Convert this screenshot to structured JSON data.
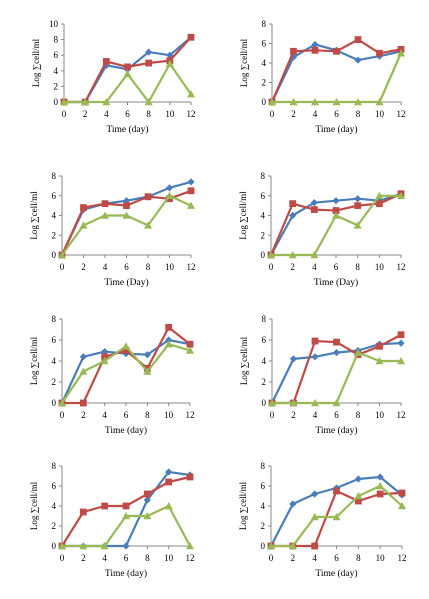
{
  "colors": {
    "series_a": "#4a7ebb",
    "series_b": "#be4b48",
    "series_c": "#98b954",
    "axis": "#888888"
  },
  "chart_data": [
    {
      "type": "line",
      "xlabel": "Time (day)",
      "ylabel": "Log ∑cell/ml",
      "x": [
        0,
        2,
        4,
        6,
        8,
        10,
        12
      ],
      "ylim": [
        0,
        10
      ],
      "yticks": [
        0,
        2,
        4,
        6,
        8,
        10
      ],
      "grid": false,
      "series": [
        {
          "marker": "diamond",
          "values": [
            0,
            0,
            4.7,
            4.2,
            6.4,
            6,
            8.3
          ]
        },
        {
          "marker": "square",
          "values": [
            0,
            0,
            5.2,
            4.5,
            5,
            5.3,
            8.3
          ]
        },
        {
          "marker": "triangle",
          "values": [
            0,
            0,
            0,
            3.6,
            0,
            4.9,
            1
          ]
        }
      ]
    },
    {
      "type": "line",
      "xlabel": "Time (day)",
      "ylabel": "Log ∑cell/ml",
      "x": [
        0,
        2,
        4,
        6,
        8,
        10,
        12
      ],
      "ylim": [
        0,
        8
      ],
      "yticks": [
        0,
        2,
        4,
        6,
        8
      ],
      "grid": false,
      "series": [
        {
          "marker": "diamond",
          "values": [
            0,
            4.6,
            5.9,
            5.3,
            4.3,
            4.7,
            5.2
          ]
        },
        {
          "marker": "square",
          "values": [
            0,
            5.2,
            5.3,
            5.2,
            6.4,
            5,
            5.4
          ]
        },
        {
          "marker": "triangle",
          "values": [
            0,
            0,
            0,
            0,
            0,
            0,
            5
          ]
        }
      ]
    },
    {
      "type": "line",
      "xlabel": "Time (Day)",
      "ylabel": "Log ∑cell/ml",
      "x": [
        0,
        2,
        4,
        6,
        8,
        10,
        12
      ],
      "ylim": [
        0,
        8
      ],
      "yticks": [
        0,
        2,
        4,
        6,
        8
      ],
      "grid": false,
      "series": [
        {
          "marker": "diamond",
          "values": [
            0,
            4.6,
            5.2,
            5.5,
            5.9,
            6.8,
            7.4
          ]
        },
        {
          "marker": "square",
          "values": [
            0,
            4.8,
            5.2,
            5,
            5.9,
            5.7,
            6.5
          ]
        },
        {
          "marker": "triangle",
          "values": [
            0,
            3,
            4,
            4,
            3,
            6,
            5
          ]
        }
      ]
    },
    {
      "type": "line",
      "xlabel": "Time (Day)",
      "ylabel": "Log ∑cell/ml",
      "x": [
        0,
        2,
        4,
        6,
        8,
        10,
        12
      ],
      "ylim": [
        0,
        8
      ],
      "yticks": [
        0,
        2,
        4,
        6,
        8
      ],
      "grid": false,
      "series": [
        {
          "marker": "diamond",
          "values": [
            0,
            4,
            5.3,
            5.5,
            5.7,
            5.5,
            6.2
          ]
        },
        {
          "marker": "square",
          "values": [
            0,
            5.2,
            4.6,
            4.5,
            5,
            5.2,
            6.2
          ]
        },
        {
          "marker": "triangle",
          "values": [
            0,
            0,
            0,
            4,
            3,
            6,
            6
          ]
        }
      ]
    },
    {
      "type": "line",
      "xlabel": "Time (day)",
      "ylabel": "Log ∑cell/ml",
      "x": [
        0,
        2,
        4,
        6,
        8,
        10,
        12
      ],
      "ylim": [
        0,
        8
      ],
      "yticks": [
        0,
        2,
        4,
        6,
        8
      ],
      "grid": false,
      "series": [
        {
          "marker": "diamond",
          "values": [
            0,
            4.4,
            4.9,
            4.7,
            4.6,
            6,
            5.6
          ]
        },
        {
          "marker": "square",
          "values": [
            0,
            0,
            4.4,
            5,
            3.3,
            7.2,
            5.6
          ]
        },
        {
          "marker": "triangle",
          "values": [
            0,
            3,
            4,
            5.4,
            3,
            5.6,
            5
          ]
        }
      ]
    },
    {
      "type": "line",
      "xlabel": "Time (day)",
      "ylabel": "Log ∑cell/ml",
      "x": [
        0,
        2,
        4,
        6,
        8,
        10,
        12
      ],
      "ylim": [
        0,
        8
      ],
      "yticks": [
        0,
        2,
        4,
        6,
        8
      ],
      "grid": false,
      "series": [
        {
          "marker": "diamond",
          "values": [
            0,
            4.2,
            4.4,
            4.8,
            5,
            5.6,
            5.7
          ]
        },
        {
          "marker": "square",
          "values": [
            0,
            0,
            5.9,
            5.8,
            4.6,
            5.4,
            6.5
          ]
        },
        {
          "marker": "triangle",
          "values": [
            0,
            0,
            0,
            0,
            4.8,
            4,
            4
          ]
        }
      ]
    },
    {
      "type": "line",
      "xlabel": "Time (day)",
      "ylabel": "Log ∑cell/ml",
      "x": [
        0,
        2,
        4,
        6,
        8,
        10,
        12
      ],
      "ylim": [
        0,
        8
      ],
      "yticks": [
        0,
        2,
        4,
        6,
        8
      ],
      "grid": false,
      "series": [
        {
          "marker": "diamond",
          "values": [
            0,
            0,
            0,
            0,
            4.6,
            7.4,
            7.1
          ]
        },
        {
          "marker": "square",
          "values": [
            0,
            3.4,
            4,
            4,
            5.2,
            6.4,
            6.9
          ]
        },
        {
          "marker": "triangle",
          "values": [
            0,
            0,
            0,
            3,
            3,
            4,
            0
          ]
        }
      ]
    },
    {
      "type": "line",
      "xlabel": "Time (day)",
      "ylabel": "Log ∑cell/ml",
      "x": [
        0,
        2,
        4,
        6,
        8,
        10,
        12
      ],
      "ylim": [
        0,
        8
      ],
      "yticks": [
        0,
        2,
        4,
        6,
        8
      ],
      "grid": false,
      "series": [
        {
          "marker": "diamond",
          "values": [
            0,
            4.2,
            5.2,
            5.8,
            6.7,
            6.9,
            5.1
          ]
        },
        {
          "marker": "square",
          "values": [
            0,
            0,
            0,
            5.5,
            4.5,
            5.2,
            5.3
          ]
        },
        {
          "marker": "triangle",
          "values": [
            0,
            0,
            2.9,
            2.9,
            5,
            6,
            4
          ]
        }
      ]
    }
  ]
}
